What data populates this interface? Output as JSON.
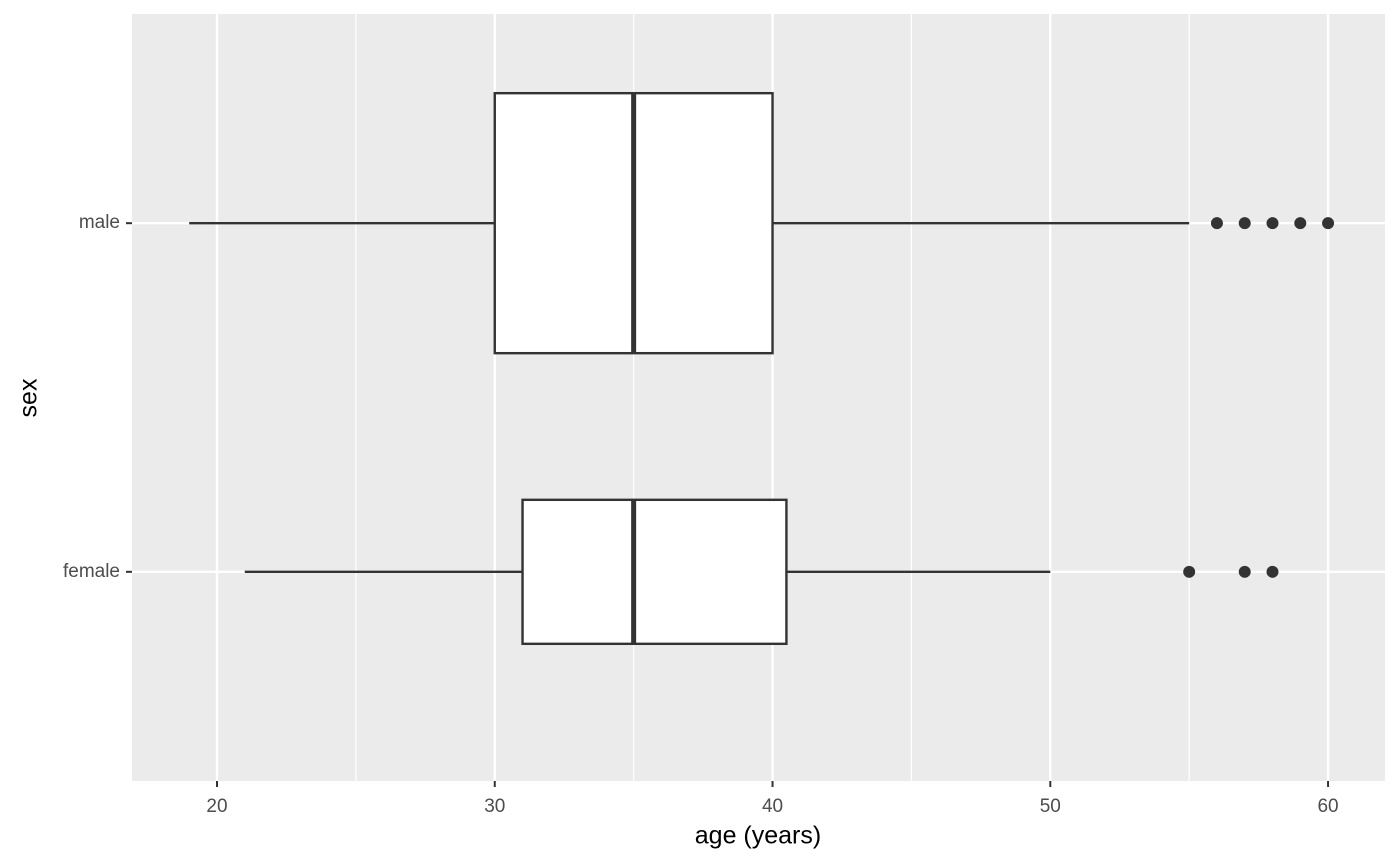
{
  "chart_data": {
    "type": "boxplot",
    "categories": [
      "male",
      "female"
    ],
    "boxes": [
      {
        "low": 19,
        "q1": 30,
        "median": 35,
        "q3": 40,
        "high": 55,
        "outliers": [
          56,
          57,
          58,
          59,
          60
        ]
      },
      {
        "low": 21,
        "q1": 31,
        "median": 35,
        "q3": 40.5,
        "high": 50,
        "outliers": [
          55,
          57,
          58
        ]
      }
    ],
    "x_label": "age (years)",
    "y_label": "sex",
    "xlim": [
      16.94,
      62.05
    ],
    "xticks": [
      20,
      30,
      40,
      50,
      60
    ],
    "minor_xticks": [
      25,
      35,
      45,
      55
    ],
    "grid": true,
    "color": "#333333",
    "fill": "#ffffff"
  }
}
